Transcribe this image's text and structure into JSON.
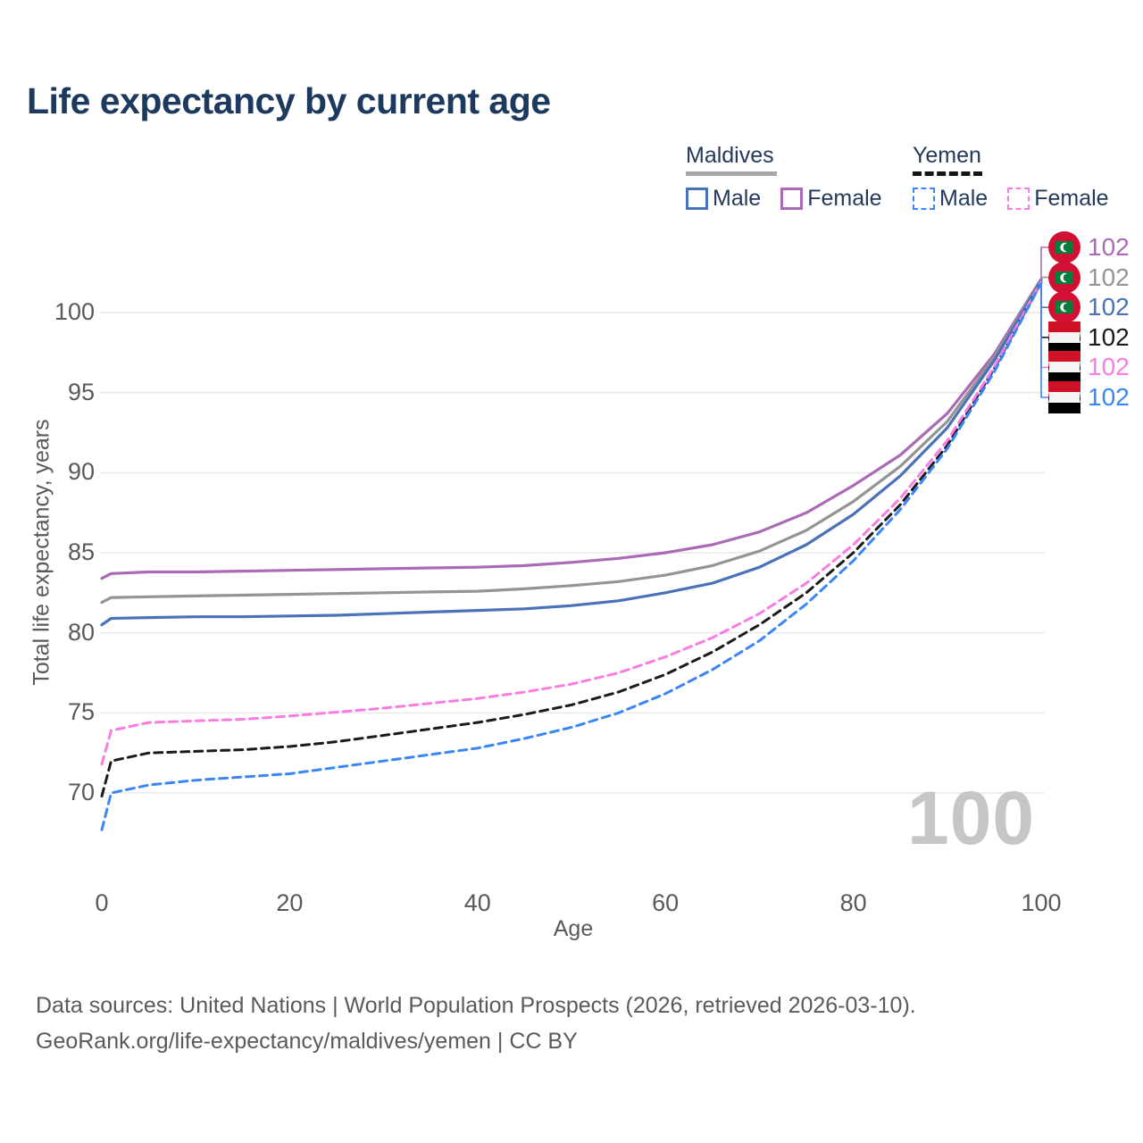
{
  "title": "Life expectancy by current age",
  "legend": {
    "groups": [
      {
        "label": "Maldives",
        "underline_style": "solid",
        "underline_color": "#a6a6a6",
        "items": [
          {
            "label": "Male",
            "color": "#4a72b8",
            "dashed": false
          },
          {
            "label": "Female",
            "color": "#ab6ab5",
            "dashed": false
          }
        ]
      },
      {
        "label": "Yemen",
        "underline_style": "dashed",
        "underline_color": "#141414",
        "items": [
          {
            "label": "Male",
            "color": "#3b86f7",
            "dashed": true
          },
          {
            "label": "Female",
            "color": "#f97ce3",
            "dashed": true
          }
        ]
      }
    ]
  },
  "axes": {
    "x": {
      "title": "Age",
      "ticks": [
        0,
        20,
        40,
        60,
        80,
        100
      ],
      "range": [
        0,
        100
      ]
    },
    "y": {
      "title": "Total life expectancy, years",
      "ticks": [
        70,
        75,
        80,
        85,
        90,
        95,
        100
      ],
      "range": [
        67,
        102.5
      ]
    }
  },
  "watermark": "100",
  "footer": {
    "line1": "Data sources: United Nations | World Population Prospects (2026, retrieved 2026-03-10).",
    "line2": "GeoRank.org/life-expectancy/maldives/yemen | CC BY"
  },
  "chart_data": {
    "type": "line",
    "xlabel": "Age",
    "ylabel": "Total life expectancy, years",
    "x": [
      0,
      1,
      5,
      10,
      15,
      20,
      25,
      30,
      35,
      40,
      45,
      50,
      55,
      60,
      65,
      70,
      75,
      80,
      85,
      90,
      95,
      100
    ],
    "series": [
      {
        "name": "Maldives Female",
        "country": "Maldives",
        "sex": "Female",
        "color": "#ab6ab5",
        "dashed": false,
        "flag": "maldives",
        "end_label": "102",
        "values": [
          83.4,
          83.7,
          83.8,
          83.8,
          83.85,
          83.9,
          83.95,
          84.0,
          84.05,
          84.1,
          84.2,
          84.4,
          84.65,
          85.0,
          85.5,
          86.3,
          87.5,
          89.2,
          91.1,
          93.7,
          97.4,
          102.1
        ]
      },
      {
        "name": "Maldives Both sexes",
        "country": "Maldives",
        "sex": "Both",
        "color": "#949494",
        "dashed": false,
        "flag": "maldives",
        "end_label": "102",
        "values": [
          81.9,
          82.2,
          82.25,
          82.3,
          82.35,
          82.4,
          82.45,
          82.5,
          82.55,
          82.6,
          82.75,
          82.95,
          83.2,
          83.6,
          84.2,
          85.1,
          86.4,
          88.2,
          90.4,
          93.2,
          97.2,
          102.05
        ]
      },
      {
        "name": "Maldives Male",
        "country": "Maldives",
        "sex": "Male",
        "color": "#4a72b8",
        "dashed": false,
        "flag": "maldives",
        "end_label": "102",
        "values": [
          80.5,
          80.9,
          80.95,
          81.0,
          81.0,
          81.05,
          81.1,
          81.2,
          81.3,
          81.4,
          81.5,
          81.7,
          82.0,
          82.5,
          83.1,
          84.1,
          85.5,
          87.4,
          89.8,
          92.8,
          97.0,
          102.0
        ]
      },
      {
        "name": "Yemen Both sexes",
        "country": "Yemen",
        "sex": "Both",
        "color": "#1a1a1a",
        "dashed": true,
        "flag": "yemen",
        "end_label": "102",
        "values": [
          69.8,
          72.0,
          72.5,
          72.6,
          72.7,
          72.9,
          73.2,
          73.6,
          74.0,
          74.4,
          74.9,
          75.5,
          76.3,
          77.4,
          78.8,
          80.5,
          82.5,
          85.0,
          88.0,
          91.7,
          96.5,
          101.9
        ]
      },
      {
        "name": "Yemen Female",
        "country": "Yemen",
        "sex": "Female",
        "color": "#f97ce3",
        "dashed": true,
        "flag": "yemen",
        "end_label": "102",
        "values": [
          71.8,
          73.9,
          74.4,
          74.5,
          74.6,
          74.8,
          75.05,
          75.3,
          75.6,
          75.9,
          76.3,
          76.8,
          77.5,
          78.5,
          79.7,
          81.2,
          83.1,
          85.5,
          88.4,
          92.0,
          96.6,
          101.95
        ]
      },
      {
        "name": "Yemen Male",
        "country": "Yemen",
        "sex": "Male",
        "color": "#3b86f7",
        "dashed": true,
        "flag": "yemen",
        "end_label": "102",
        "values": [
          67.7,
          70.0,
          70.5,
          70.8,
          71.0,
          71.2,
          71.6,
          72.0,
          72.4,
          72.8,
          73.4,
          74.1,
          75.0,
          76.2,
          77.7,
          79.5,
          81.8,
          84.5,
          87.7,
          91.5,
          96.3,
          101.85
        ]
      }
    ]
  }
}
